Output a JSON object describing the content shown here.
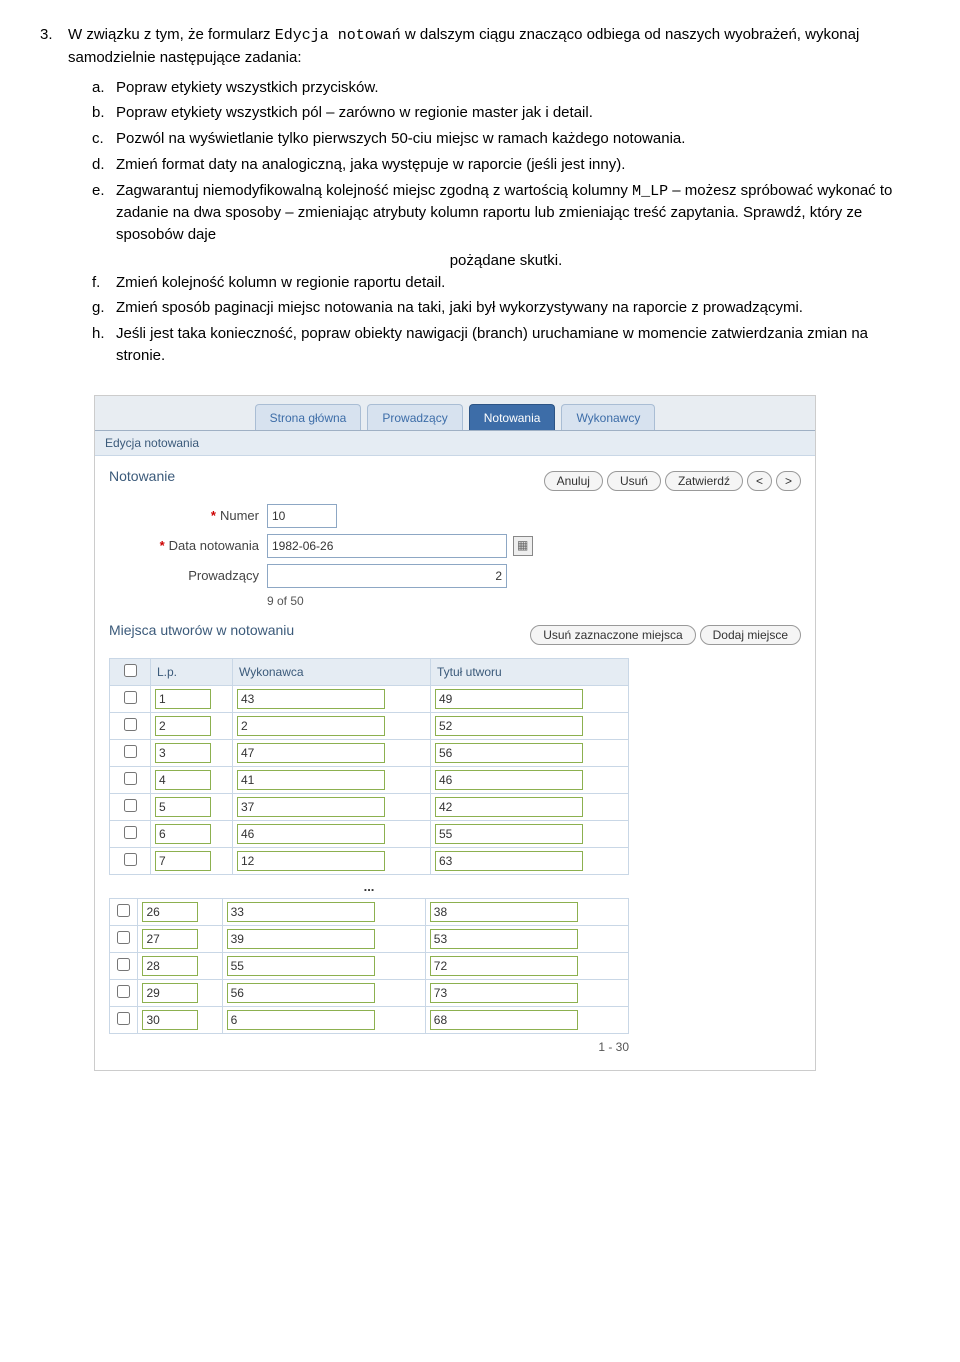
{
  "instructions": {
    "main_num": "3.",
    "main_text_a": "W związku z tym, że formularz ",
    "code1": "Edycja notowań",
    "main_text_b": " w dalszym ciągu znacząco odbiega od naszych wyobrażeń, wykonaj samodzielnie następujące zadania:",
    "items": [
      {
        "lett": "a.",
        "text": "Popraw etykiety wszystkich przycisków."
      },
      {
        "lett": "b.",
        "text": "Popraw etykiety wszystkich pól – zarówno w regionie master jak i detail."
      },
      {
        "lett": "c.",
        "text": "Pozwól na wyświetlanie tylko pierwszych 50-ciu miejsc w ramach każdego notowania."
      },
      {
        "lett": "d.",
        "text": "Zmień format daty na analogiczną, jaka występuje w raporcie (jeśli jest inny)."
      },
      {
        "lett": "f.",
        "text": "Zmień kolejność kolumn w regionie raportu detail."
      },
      {
        "lett": "g.",
        "text": "Zmień sposób paginacji miejsc notowania na taki, jaki był wykorzystywany na raporcie z prowadzącymi."
      },
      {
        "lett": "h.",
        "text": "Jeśli jest taka konieczność, popraw obiekty nawigacji (branch) uruchamiane w momencie zatwierdzania zmian na stronie."
      }
    ],
    "item_e": {
      "lett": "e.",
      "text_a": "Zagwarantuj niemodyfikowalną kolejność miejsc zgodną z wartością kolumny ",
      "code": "M_LP",
      "text_b": " – możesz spróbować wykonać to zadanie na dwa sposoby – zmieniając atrybuty kolumn raportu lub zmieniając treść zapytania. Sprawdź, który ze sposobów daje",
      "text_center": "pożądane skutki."
    }
  },
  "mock": {
    "tabs": [
      "Strona główna",
      "Prowadzący",
      "Notowania",
      "Wykonawcy"
    ],
    "active_tab": 2,
    "breadcrumb": "Edycja notowania",
    "master": {
      "title": "Notowanie",
      "buttons": [
        "Anuluj",
        "Usuń",
        "Zatwierdź",
        "<",
        ">"
      ],
      "fields": {
        "numer_label": "Numer",
        "numer_value": "10",
        "data_label": "Data notowania",
        "data_value": "1982-06-26",
        "prow_label": "Prowadzący",
        "prow_value": "2"
      },
      "counter": "9 of 50"
    },
    "detail": {
      "title": "Miejsca utworów w notowaniu",
      "buttons": [
        "Usuń zaznaczone miejsca",
        "Dodaj miejsce"
      ],
      "columns": [
        "L.p.",
        "Wykonawca",
        "Tytuł utworu"
      ],
      "rows_top": [
        [
          "1",
          "43",
          "49"
        ],
        [
          "2",
          "2",
          "52"
        ],
        [
          "3",
          "47",
          "56"
        ],
        [
          "4",
          "41",
          "46"
        ],
        [
          "5",
          "37",
          "42"
        ],
        [
          "6",
          "46",
          "55"
        ],
        [
          "7",
          "12",
          "63"
        ]
      ],
      "dots": "...",
      "rows_bottom": [
        [
          "26",
          "33",
          "38"
        ],
        [
          "27",
          "39",
          "53"
        ],
        [
          "28",
          "55",
          "72"
        ],
        [
          "29",
          "56",
          "73"
        ],
        [
          "30",
          "6",
          "68"
        ]
      ],
      "pager": "1 - 30"
    }
  }
}
